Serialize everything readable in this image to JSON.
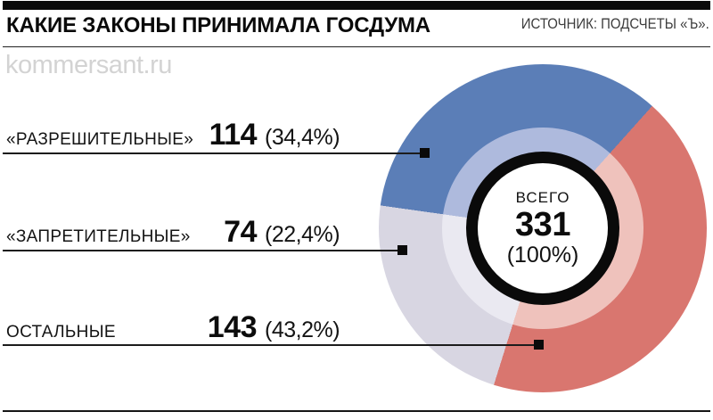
{
  "header": {
    "title": "КАКИЕ ЗАКОНЫ ПРИНИМАЛА ГОСДУМА",
    "source": "ИСТОЧНИК: ПОДСЧЕТЫ «Ъ».",
    "watermark": "kommersant.ru"
  },
  "chart_data": {
    "type": "pie",
    "subtype": "double-ring-donut",
    "title": "КАКИЕ ЗАКОНЫ ПРИНИМАЛА ГОСДУМА",
    "legend_position": "left",
    "total": 331,
    "start_angle_deg": 278,
    "ring_draw_order": [
      0,
      2,
      1
    ],
    "center": {
      "label": "ВСЕГО",
      "total": "331",
      "percent": "(100%)"
    },
    "segments": [
      {
        "label": "«РАЗРЕШИТЕЛЬНЫЕ»",
        "value": 114,
        "percent": 34.4,
        "percent_label": "(34,4%)",
        "colors": {
          "outer": "#5b7eb7",
          "inner": "#aebadd"
        }
      },
      {
        "label": "«ЗАПРЕТИТЕЛЬНЫЕ»",
        "value": 74,
        "percent": 22.4,
        "percent_label": "(22,4%)",
        "colors": {
          "outer": "#d8d6e2",
          "inner": "#eae9f1"
        }
      },
      {
        "label": "ОСТАЛЬНЫЕ",
        "value": 143,
        "percent": 43.2,
        "percent_label": "(43,2%)",
        "colors": {
          "outer": "#d9766f",
          "inner": "#efc2bc"
        }
      }
    ]
  }
}
